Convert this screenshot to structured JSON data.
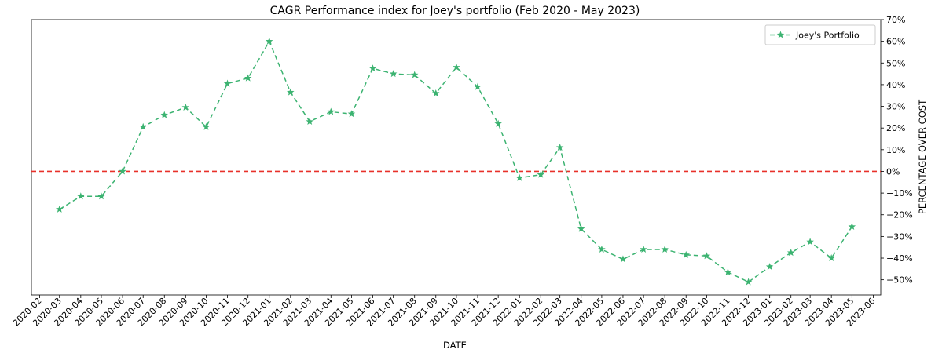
{
  "chart_data": {
    "type": "line",
    "title": "CAGR Performance index for Joey's portfolio (Feb 2020 - May 2023)",
    "xlabel": "DATE",
    "ylabel": "PERCENTAGE OVER COST",
    "x_ticks": [
      "2020-02",
      "2020-03",
      "2020-04",
      "2020-05",
      "2020-06",
      "2020-07",
      "2020-08",
      "2020-09",
      "2020-10",
      "2020-11",
      "2020-12",
      "2021-01",
      "2021-02",
      "2021-03",
      "2021-04",
      "2021-05",
      "2021-06",
      "2021-07",
      "2021-08",
      "2021-09",
      "2021-10",
      "2021-11",
      "2021-12",
      "2022-01",
      "2022-02",
      "2022-03",
      "2022-04",
      "2022-05",
      "2022-06",
      "2022-07",
      "2022-08",
      "2022-09",
      "2022-10",
      "2022-11",
      "2022-12",
      "2023-01",
      "2023-02",
      "2023-03",
      "2023-04",
      "2023-05",
      "2023-06"
    ],
    "y_ticks": [
      70,
      60,
      50,
      40,
      30,
      20,
      10,
      0,
      -10,
      -20,
      -30,
      -40,
      -50
    ],
    "y_tick_labels": [
      "70%",
      "60%",
      "50%",
      "40%",
      "30%",
      "20%",
      "10%",
      "0%",
      "−10%",
      "−20%",
      "−30%",
      "−40%",
      "−50%"
    ],
    "ylim": [
      -57,
      70
    ],
    "xlim": [
      "2020-01-20",
      "2023-06-12"
    ],
    "y_axis_position": "right",
    "legend_position": "top-right",
    "grid": false,
    "series": [
      {
        "name": "Joey's Portfolio",
        "color": "#3cb371",
        "line_style": "dashed",
        "marker": "star",
        "x": [
          "2020-03-01",
          "2020-04-01",
          "2020-05-01",
          "2020-06-01",
          "2020-07-01",
          "2020-08-01",
          "2020-09-01",
          "2020-10-01",
          "2020-11-01",
          "2020-12-01",
          "2021-01-01",
          "2021-02-01",
          "2021-03-01",
          "2021-04-01",
          "2021-05-01",
          "2021-06-01",
          "2021-07-01",
          "2021-08-01",
          "2021-09-01",
          "2021-10-01",
          "2021-11-01",
          "2021-12-01",
          "2022-01-01",
          "2022-02-01",
          "2022-03-01",
          "2022-04-01",
          "2022-05-01",
          "2022-06-01",
          "2022-07-01",
          "2022-08-01",
          "2022-09-01",
          "2022-10-01",
          "2022-11-01",
          "2022-12-01",
          "2023-01-01",
          "2023-02-01",
          "2023-03-01",
          "2023-04-01",
          "2023-05-01"
        ],
        "values": [
          -17.5,
          -11.5,
          -11.5,
          0,
          20.5,
          26,
          29.5,
          20.5,
          40.5,
          43,
          60,
          36.5,
          23,
          27.5,
          26.5,
          47.5,
          45,
          44.5,
          36,
          48,
          39,
          22,
          -3,
          -1.5,
          11,
          -26.5,
          -36,
          -40.5,
          -36,
          -36,
          -38.5,
          -39,
          -46.5,
          -51,
          -44,
          -37.5,
          -32.5,
          -40,
          -25.5
        ]
      }
    ],
    "reference_lines": [
      {
        "y": 0,
        "color": "#e8312a",
        "line_style": "dashed"
      }
    ]
  }
}
